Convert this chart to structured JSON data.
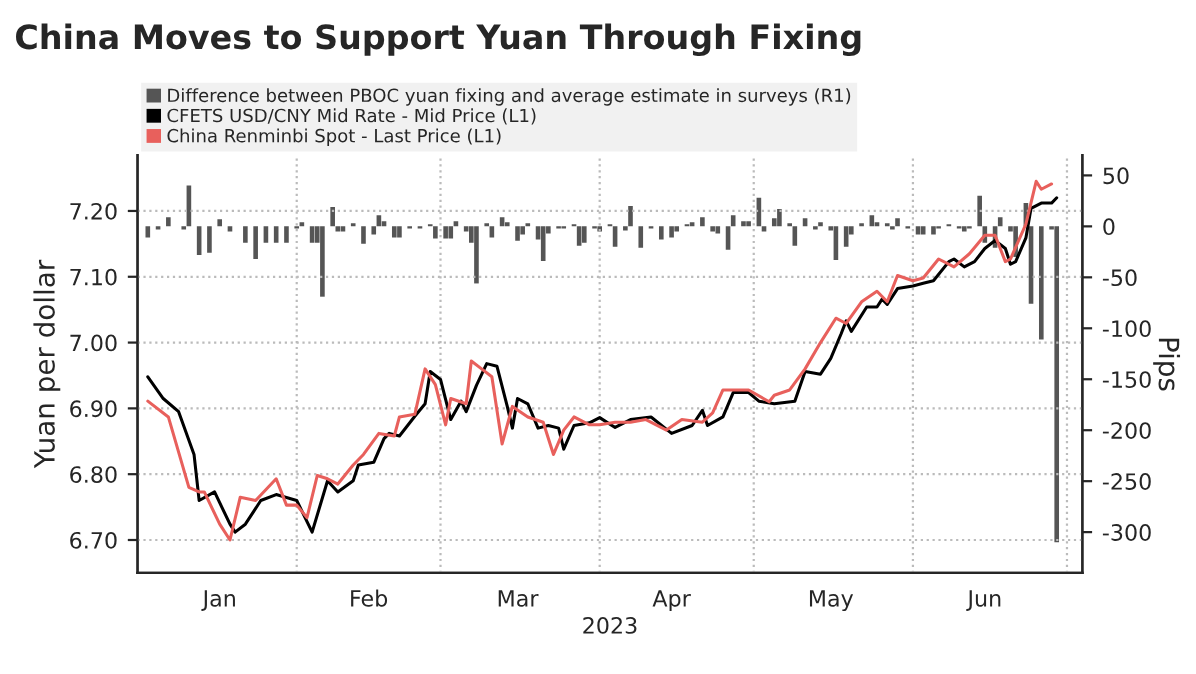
{
  "chart_data": {
    "type": "line",
    "title": "China Moves to Support Yuan Through Fixing",
    "xlabel": "2023",
    "ylabel": "Yuan per dollar",
    "y2label": "Pips",
    "xlim": [
      "2023-01-01",
      "2023-07-04"
    ],
    "xticks": [
      {
        "value": "2023-01-17",
        "label": "Jan"
      },
      {
        "value": "2023-02-01",
        "label": null
      },
      {
        "value": "2023-02-15",
        "label": "Feb"
      },
      {
        "value": "2023-03-01",
        "label": null
      },
      {
        "value": "2023-03-16",
        "label": "Mar"
      },
      {
        "value": "2023-04-01",
        "label": null
      },
      {
        "value": "2023-04-15",
        "label": "Apr"
      },
      {
        "value": "2023-05-01",
        "label": null
      },
      {
        "value": "2023-05-16",
        "label": "May"
      },
      {
        "value": "2023-06-01",
        "label": null
      },
      {
        "value": "2023-06-15",
        "label": "Jun"
      },
      {
        "value": "2023-07-01",
        "label": null
      }
    ],
    "ylim": [
      6.65,
      7.285
    ],
    "yticks": [
      {
        "value": 6.7,
        "label": "6.70"
      },
      {
        "value": 6.8,
        "label": "6.80"
      },
      {
        "value": 6.9,
        "label": "6.90"
      },
      {
        "value": 7.0,
        "label": "7.00"
      },
      {
        "value": 7.1,
        "label": "7.10"
      },
      {
        "value": 7.2,
        "label": "7.20"
      }
    ],
    "y2lim": [
      -340,
      70
    ],
    "y2ticks": [
      -300,
      -250,
      -200,
      -150,
      -100,
      -50,
      0,
      50
    ],
    "grid": true,
    "legend": "top left",
    "series": [
      {
        "name": "Difference between PBOC yuan fixing and average estimate in surveys (R1)",
        "type": "bar",
        "axis": "y2",
        "color": "#555555",
        "x": [
          "2023-01-03",
          "2023-01-05",
          "2023-01-07",
          "2023-01-10",
          "2023-01-11",
          "2023-01-13",
          "2023-01-15",
          "2023-01-17",
          "2023-01-19",
          "2023-01-22",
          "2023-01-24",
          "2023-01-26",
          "2023-01-28",
          "2023-01-30",
          "2023-02-01",
          "2023-02-02",
          "2023-02-04",
          "2023-02-05",
          "2023-02-06",
          "2023-02-08",
          "2023-02-09",
          "2023-02-10",
          "2023-02-12",
          "2023-02-14",
          "2023-02-16",
          "2023-02-17",
          "2023-02-18",
          "2023-02-20",
          "2023-02-21",
          "2023-02-23",
          "2023-02-25",
          "2023-02-27",
          "2023-02-28",
          "2023-03-02",
          "2023-03-03",
          "2023-03-04",
          "2023-03-06",
          "2023-03-07",
          "2023-03-08",
          "2023-03-10",
          "2023-03-11",
          "2023-03-13",
          "2023-03-14",
          "2023-03-16",
          "2023-03-17",
          "2023-03-18",
          "2023-03-20",
          "2023-03-21",
          "2023-03-22",
          "2023-03-24",
          "2023-03-25",
          "2023-03-27",
          "2023-03-28",
          "2023-03-29",
          "2023-03-31",
          "2023-04-01",
          "2023-04-03",
          "2023-04-04",
          "2023-04-06",
          "2023-04-07",
          "2023-04-09",
          "2023-04-11",
          "2023-04-13",
          "2023-04-15",
          "2023-04-16",
          "2023-04-18",
          "2023-04-19",
          "2023-04-21",
          "2023-04-23",
          "2023-04-24",
          "2023-04-26",
          "2023-04-27",
          "2023-04-29",
          "2023-04-30",
          "2023-05-02",
          "2023-05-03",
          "2023-05-05",
          "2023-05-06",
          "2023-05-08",
          "2023-05-09",
          "2023-05-11",
          "2023-05-13",
          "2023-05-14",
          "2023-05-16",
          "2023-05-17",
          "2023-05-19",
          "2023-05-20",
          "2023-05-22",
          "2023-05-24",
          "2023-05-25",
          "2023-05-27",
          "2023-05-28",
          "2023-05-29",
          "2023-05-31",
          "2023-06-02",
          "2023-06-03",
          "2023-06-05",
          "2023-06-06",
          "2023-06-08",
          "2023-06-10",
          "2023-06-11",
          "2023-06-12",
          "2023-06-14",
          "2023-06-15",
          "2023-06-17",
          "2023-06-18",
          "2023-06-20",
          "2023-06-21",
          "2023-06-23",
          "2023-06-24",
          "2023-06-26",
          "2023-06-28",
          "2023-06-29"
        ],
        "values": [
          -11,
          -3,
          9,
          -3,
          40,
          -28,
          -26,
          7,
          -5,
          -16,
          -32,
          -16,
          -16,
          -16,
          -2,
          4,
          -16,
          -16,
          -69,
          19,
          -5,
          -5,
          3,
          -17,
          -8,
          11,
          5,
          -11,
          -11,
          -2,
          -2,
          2,
          -12,
          -12,
          -12,
          5,
          -5,
          -16,
          -56,
          3,
          -11,
          9,
          4,
          -14,
          -8,
          3,
          -13,
          -34,
          -7,
          -2,
          -2,
          2,
          -19,
          -16,
          -2,
          -5,
          2,
          -20,
          -4,
          20,
          -21,
          -2,
          -13,
          -11,
          -5,
          2,
          4,
          9,
          -5,
          -7,
          -23,
          11,
          5,
          5,
          28,
          -5,
          8,
          17,
          3,
          -19,
          8,
          -3,
          4,
          -4,
          -33,
          -20,
          -8,
          3,
          11,
          4,
          3,
          -3,
          8,
          -2,
          -8,
          -8,
          -8,
          -2,
          2,
          -2,
          -5,
          -2,
          30,
          -16,
          -21,
          9,
          -5,
          -30,
          23,
          -76,
          -111,
          -3,
          -310
        ]
      },
      {
        "name": "CFETS USD/CNY Mid Rate - Mid Price (L1)",
        "color": "#000000",
        "x": [
          "2023-01-03",
          "2023-01-06",
          "2023-01-09",
          "2023-01-12",
          "2023-01-13",
          "2023-01-16",
          "2023-01-19",
          "2023-01-20",
          "2023-01-22",
          "2023-01-25",
          "2023-01-28",
          "2023-02-01",
          "2023-02-04",
          "2023-02-07",
          "2023-02-09",
          "2023-02-12",
          "2023-02-13",
          "2023-02-16",
          "2023-02-18",
          "2023-02-19",
          "2023-02-21",
          "2023-02-24",
          "2023-02-26",
          "2023-02-27",
          "2023-03-01",
          "2023-03-03",
          "2023-03-05",
          "2023-03-06",
          "2023-03-08",
          "2023-03-10",
          "2023-03-12",
          "2023-03-14",
          "2023-03-15",
          "2023-03-16",
          "2023-03-18",
          "2023-03-20",
          "2023-03-22",
          "2023-03-24",
          "2023-03-25",
          "2023-03-27",
          "2023-03-30",
          "2023-04-01",
          "2023-04-04",
          "2023-04-07",
          "2023-04-11",
          "2023-04-15",
          "2023-04-19",
          "2023-04-21",
          "2023-04-22",
          "2023-04-25",
          "2023-04-27",
          "2023-04-30",
          "2023-05-02",
          "2023-05-05",
          "2023-05-09",
          "2023-05-11",
          "2023-05-14",
          "2023-05-16",
          "2023-05-18",
          "2023-05-19",
          "2023-05-20",
          "2023-05-23",
          "2023-05-25",
          "2023-05-26",
          "2023-05-27",
          "2023-05-29",
          "2023-06-01",
          "2023-06-03",
          "2023-06-05",
          "2023-06-08",
          "2023-06-09",
          "2023-06-11",
          "2023-06-13",
          "2023-06-15",
          "2023-06-17",
          "2023-06-19",
          "2023-06-20",
          "2023-06-21",
          "2023-06-23",
          "2023-06-24",
          "2023-06-26",
          "2023-06-28",
          "2023-06-29"
        ],
        "values": [
          6.948,
          6.915,
          6.895,
          6.83,
          6.76,
          6.773,
          6.724,
          6.712,
          6.724,
          6.76,
          6.769,
          6.76,
          6.712,
          6.79,
          6.773,
          6.79,
          6.814,
          6.818,
          6.854,
          6.862,
          6.858,
          6.888,
          6.907,
          6.956,
          6.944,
          6.883,
          6.911,
          6.895,
          6.935,
          6.968,
          6.964,
          6.903,
          6.87,
          6.915,
          6.907,
          6.87,
          6.874,
          6.87,
          6.838,
          6.874,
          6.878,
          6.886,
          6.871,
          6.883,
          6.887,
          6.862,
          6.874,
          6.897,
          6.874,
          6.887,
          6.924,
          6.924,
          6.911,
          6.907,
          6.911,
          6.956,
          6.952,
          6.976,
          7.013,
          7.033,
          7.017,
          7.054,
          7.054,
          7.066,
          7.058,
          7.082,
          7.086,
          7.09,
          7.094,
          7.123,
          7.127,
          7.115,
          7.123,
          7.143,
          7.155,
          7.143,
          7.119,
          7.123,
          7.159,
          7.204,
          7.212,
          7.212,
          7.22
        ]
      },
      {
        "name": "China Renminbi Spot - Last Price (L1)",
        "color": "#e8605c",
        "x": [
          "2023-01-03",
          "2023-01-07",
          "2023-01-11",
          "2023-01-13",
          "2023-01-14",
          "2023-01-17",
          "2023-01-19",
          "2023-01-21",
          "2023-01-24",
          "2023-01-28",
          "2023-01-30",
          "2023-02-01",
          "2023-02-03",
          "2023-02-05",
          "2023-02-07",
          "2023-02-09",
          "2023-02-12",
          "2023-02-14",
          "2023-02-17",
          "2023-02-20",
          "2023-02-21",
          "2023-02-24",
          "2023-02-26",
          "2023-02-28",
          "2023-03-02",
          "2023-03-03",
          "2023-03-06",
          "2023-03-07",
          "2023-03-09",
          "2023-03-11",
          "2023-03-13",
          "2023-03-15",
          "2023-03-18",
          "2023-03-21",
          "2023-03-23",
          "2023-03-25",
          "2023-03-27",
          "2023-03-30",
          "2023-04-01",
          "2023-04-04",
          "2023-04-07",
          "2023-04-10",
          "2023-04-14",
          "2023-04-17",
          "2023-04-21",
          "2023-04-23",
          "2023-04-25",
          "2023-04-27",
          "2023-04-30",
          "2023-05-04",
          "2023-05-05",
          "2023-05-08",
          "2023-05-11",
          "2023-05-14",
          "2023-05-17",
          "2023-05-19",
          "2023-05-22",
          "2023-05-25",
          "2023-05-27",
          "2023-05-29",
          "2023-06-01",
          "2023-06-03",
          "2023-06-06",
          "2023-06-09",
          "2023-06-12",
          "2023-06-15",
          "2023-06-17",
          "2023-06-19",
          "2023-06-20",
          "2023-06-23",
          "2023-06-25",
          "2023-06-26",
          "2023-06-28"
        ],
        "values": [
          6.911,
          6.887,
          6.78,
          6.773,
          6.773,
          6.724,
          6.7,
          6.765,
          6.76,
          6.793,
          6.753,
          6.753,
          6.734,
          6.798,
          6.793,
          6.785,
          6.814,
          6.83,
          6.862,
          6.858,
          6.887,
          6.891,
          6.96,
          6.936,
          6.875,
          6.915,
          6.907,
          6.972,
          6.96,
          6.948,
          6.846,
          6.903,
          6.887,
          6.879,
          6.83,
          6.867,
          6.887,
          6.875,
          6.875,
          6.879,
          6.879,
          6.883,
          6.867,
          6.883,
          6.879,
          6.893,
          6.928,
          6.928,
          6.928,
          6.91,
          6.92,
          6.928,
          6.96,
          7.0,
          7.037,
          7.029,
          7.062,
          7.078,
          7.062,
          7.102,
          7.094,
          7.098,
          7.127,
          7.115,
          7.135,
          7.163,
          7.163,
          7.123,
          7.127,
          7.18,
          7.245,
          7.233,
          7.241
        ]
      }
    ]
  }
}
